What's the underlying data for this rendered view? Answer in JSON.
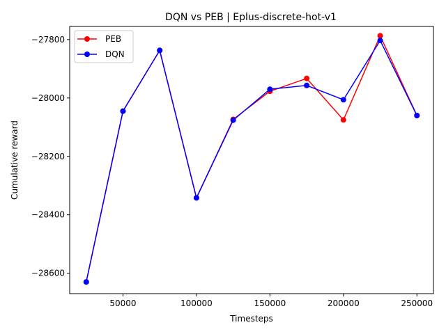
{
  "chart_data": {
    "type": "line",
    "title": "DQN vs PEB | Eplus-discrete-hot-v1",
    "xlabel": "Timesteps",
    "ylabel": "Cumulative reward",
    "x": [
      25000,
      50000,
      75000,
      100000,
      125000,
      150000,
      175000,
      200000,
      225000,
      250000
    ],
    "xlim": [
      13750,
      261250
    ],
    "ylim": [
      -28670,
      -27755
    ],
    "xticks": [
      50000,
      100000,
      150000,
      200000,
      250000
    ],
    "yticks": [
      -28600,
      -28400,
      -28200,
      -28000,
      -27800
    ],
    "grid": false,
    "legend_position": "upper-left",
    "series": [
      {
        "name": "PEB",
        "color": "#ff0000",
        "marker": "circle",
        "values": [
          -28630,
          -28045,
          -27837,
          -28342,
          -28073,
          -27977,
          -27933,
          -28075,
          -27787,
          -28060
        ]
      },
      {
        "name": "DQN",
        "color": "#0000ff",
        "marker": "circle",
        "values": [
          -28630,
          -28045,
          -27837,
          -28342,
          -28076,
          -27970,
          -27957,
          -28006,
          -27803,
          -28060
        ]
      }
    ]
  }
}
